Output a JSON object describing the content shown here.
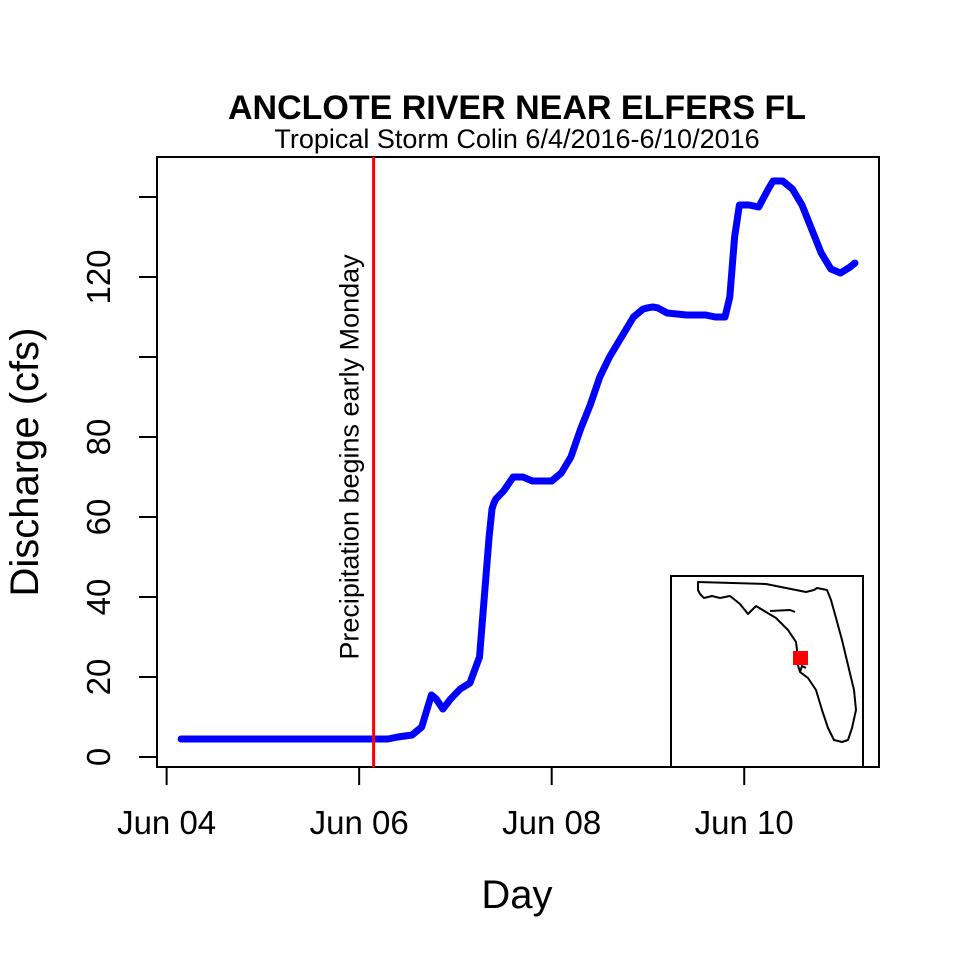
{
  "chart_data": {
    "type": "line",
    "title": "ANCLOTE RIVER NEAR ELFERS FL",
    "subtitle": "Tropical Storm Colin 6/4/2016-6/10/2016",
    "xlabel": "Day",
    "ylabel": "Discharge (cfs)",
    "x_unit": "days since 2016-06-04 00:00",
    "xlim": [
      -0.1,
      7.4
    ],
    "ylim": [
      -2.5,
      150
    ],
    "x_ticks": [
      {
        "x": 0,
        "label": "Jun 04"
      },
      {
        "x": 2,
        "label": "Jun 06"
      },
      {
        "x": 4,
        "label": "Jun 08"
      },
      {
        "x": 6,
        "label": "Jun 10"
      }
    ],
    "y_ticks": [
      0,
      20,
      40,
      60,
      80,
      100,
      120,
      140
    ],
    "y_tick_labels": [
      {
        "y": 0,
        "label": "0"
      },
      {
        "y": 20,
        "label": "20"
      },
      {
        "y": 40,
        "label": "40"
      },
      {
        "y": 60,
        "label": "60"
      },
      {
        "y": 80,
        "label": "80"
      },
      {
        "y": 120,
        "label": "120"
      }
    ],
    "series_color": "#0000ff",
    "event_line": {
      "x": 2.15,
      "label": "Precipitation begins early Monday",
      "color": "#ff0000"
    },
    "series": [
      {
        "name": "Discharge",
        "x": [
          0.15,
          0.5,
          1.0,
          1.5,
          2.0,
          2.15,
          2.3,
          2.4,
          2.55,
          2.65,
          2.75,
          2.8,
          2.87,
          2.95,
          3.05,
          3.15,
          3.25,
          3.3,
          3.35,
          3.38,
          3.4,
          3.42,
          3.5,
          3.6,
          3.7,
          3.8,
          4.0,
          4.1,
          4.2,
          4.3,
          4.4,
          4.5,
          4.6,
          4.7,
          4.8,
          4.85,
          4.9,
          4.95,
          5.0,
          5.05,
          5.1,
          5.2,
          5.4,
          5.6,
          5.7,
          5.8,
          5.85,
          5.9,
          5.95,
          6.05,
          6.15,
          6.25,
          6.3,
          6.4,
          6.5,
          6.6,
          6.7,
          6.8,
          6.9,
          7.0,
          7.1,
          7.15
        ],
        "y": [
          4.5,
          4.5,
          4.5,
          4.5,
          4.5,
          4.5,
          4.5,
          5.0,
          5.5,
          7.5,
          15.5,
          14.5,
          12.0,
          14.5,
          17.0,
          18.5,
          25.0,
          40.0,
          55.0,
          62.0,
          63.5,
          64.5,
          66.5,
          70.0,
          70.0,
          69.0,
          69.0,
          71.0,
          75.0,
          82.0,
          88.0,
          95.0,
          100.0,
          104.0,
          108.0,
          110.0,
          111.0,
          112.0,
          112.3,
          112.5,
          112.3,
          111.0,
          110.5,
          110.5,
          110.0,
          110.0,
          115.0,
          130.0,
          138.0,
          138.0,
          137.5,
          142.0,
          144.0,
          144.0,
          142.0,
          138.0,
          132.0,
          126.0,
          122.0,
          121.0,
          122.5,
          123.5
        ]
      }
    ],
    "inset_map": {
      "region": "Florida",
      "marker_color": "#ff0000"
    }
  }
}
